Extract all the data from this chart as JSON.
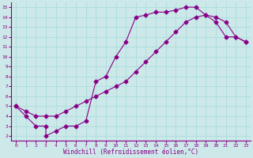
{
  "xlabel": "Windchill (Refroidissement éolien,°C)",
  "xlim": [
    -0.5,
    23.5
  ],
  "ylim": [
    1.5,
    15.5
  ],
  "xticks": [
    0,
    1,
    2,
    3,
    4,
    5,
    6,
    7,
    8,
    9,
    10,
    11,
    12,
    13,
    14,
    15,
    16,
    17,
    18,
    19,
    20,
    21,
    22,
    23
  ],
  "yticks": [
    2,
    3,
    4,
    5,
    6,
    7,
    8,
    9,
    10,
    11,
    12,
    13,
    14,
    15
  ],
  "bg_color": "#cce8e8",
  "line_color": "#880088",
  "grid_color": "#aadddd",
  "curve1_x": [
    0,
    1,
    2,
    3,
    3,
    4,
    5,
    6,
    7,
    8,
    9,
    10,
    11,
    12,
    13,
    14,
    15,
    16,
    17,
    18,
    19,
    20,
    21,
    22,
    23
  ],
  "curve1_y": [
    5,
    4,
    3,
    3,
    2,
    2.5,
    3,
    3,
    3.5,
    7.5,
    8,
    10,
    11.5,
    14,
    14.2,
    14.5,
    14.5,
    14.7,
    15,
    15,
    14.2,
    13.5,
    12,
    12,
    11.5
  ],
  "curve2_x": [
    0,
    1,
    2,
    3,
    4,
    5,
    6,
    7,
    8,
    9,
    10,
    11,
    12,
    13,
    14,
    15,
    16,
    17,
    18,
    19,
    20,
    21,
    22,
    23
  ],
  "curve2_y": [
    5,
    4.5,
    4,
    4,
    4,
    4.5,
    5,
    5.5,
    6,
    6.5,
    7,
    7.5,
    8.5,
    9.5,
    10.5,
    11.5,
    12.5,
    13.5,
    14,
    14.2,
    14,
    13.5,
    12,
    11.5
  ],
  "marker": "D",
  "markersize": 2.5,
  "linewidth": 0.8,
  "tick_fontsize": 4.5,
  "xlabel_fontsize": 5.5
}
